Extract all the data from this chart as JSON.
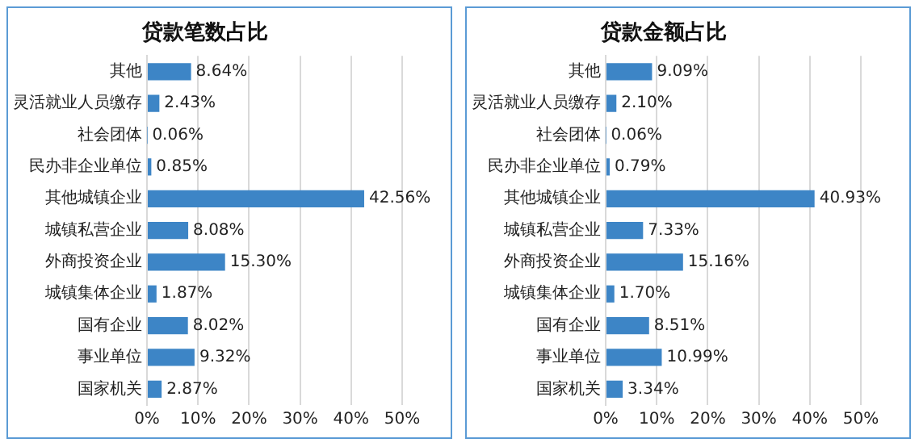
{
  "chart_data": [
    {
      "type": "bar",
      "orientation": "horizontal",
      "title": "贷款笔数占比",
      "categories": [
        "其他",
        "灵活就业人员缴存",
        "社会团体",
        "民办非企业单位",
        "其他城镇企业",
        "城镇私营企业",
        "外商投资企业",
        "城镇集体企业",
        "国有企业",
        "事业单位",
        "国家机关"
      ],
      "values": [
        8.64,
        2.43,
        0.06,
        0.85,
        42.56,
        8.08,
        15.3,
        1.87,
        8.02,
        9.32,
        2.87
      ],
      "value_labels": [
        "8.64%",
        "2.43%",
        "0.06%",
        "0.85%",
        "42.56%",
        "8.08%",
        "15.30%",
        "1.87%",
        "8.02%",
        "9.32%",
        "2.87%"
      ],
      "color": "#3d85c6",
      "xlim": [
        0,
        50
      ],
      "xticks": [
        {
          "value": 0,
          "label": "0%"
        },
        {
          "value": 10,
          "label": "10%"
        },
        {
          "value": 20,
          "label": "20%"
        },
        {
          "value": 30,
          "label": "30%"
        },
        {
          "value": 40,
          "label": "40%"
        },
        {
          "value": 50,
          "label": "50%"
        }
      ],
      "grid": "x",
      "legend": false
    },
    {
      "type": "bar",
      "orientation": "horizontal",
      "title": "贷款金额占比",
      "categories": [
        "其他",
        "灵活就业人员缴存",
        "社会团体",
        "民办非企业单位",
        "其他城镇企业",
        "城镇私营企业",
        "外商投资企业",
        "城镇集体企业",
        "国有企业",
        "事业单位",
        "国家机关"
      ],
      "values": [
        9.09,
        2.1,
        0.06,
        0.79,
        40.93,
        7.33,
        15.16,
        1.7,
        8.51,
        10.99,
        3.34
      ],
      "value_labels": [
        "9.09%",
        "2.10%",
        "0.06%",
        "0.79%",
        "40.93%",
        "7.33%",
        "15.16%",
        "1.70%",
        "8.51%",
        "10.99%",
        "3.34%"
      ],
      "color": "#3d85c6",
      "xlim": [
        0,
        50
      ],
      "xticks": [
        {
          "value": 0,
          "label": "0%"
        },
        {
          "value": 10,
          "label": "10%"
        },
        {
          "value": 20,
          "label": "20%"
        },
        {
          "value": 30,
          "label": "30%"
        },
        {
          "value": 40,
          "label": "40%"
        },
        {
          "value": 50,
          "label": "50%"
        }
      ],
      "grid": "x",
      "legend": false
    }
  ]
}
